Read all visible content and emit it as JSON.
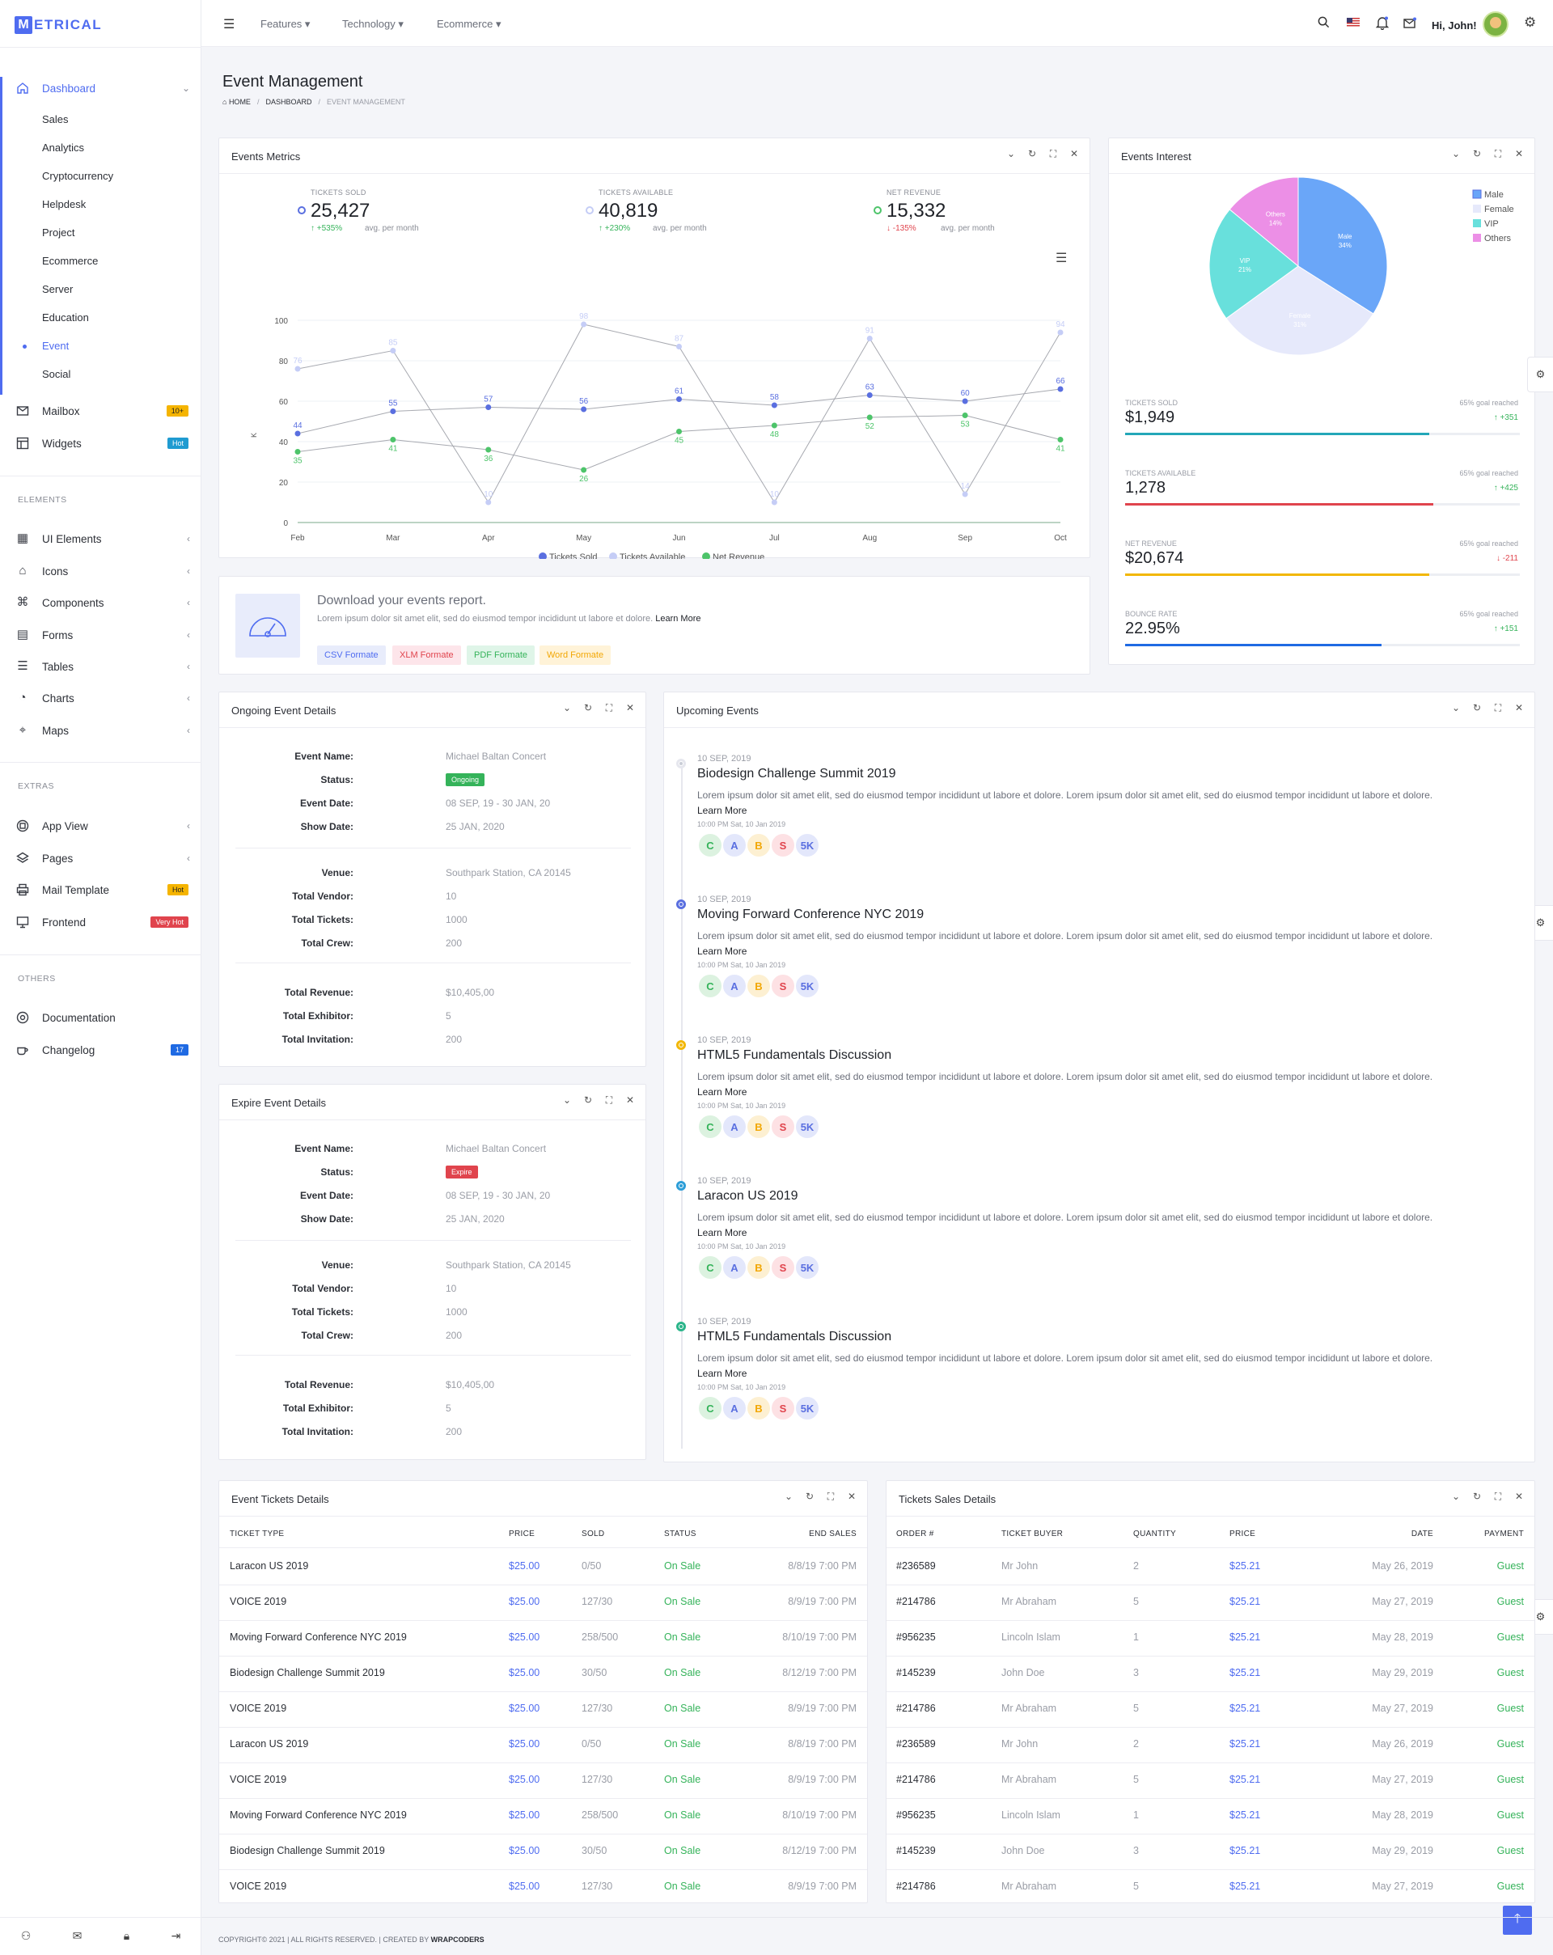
{
  "app": {
    "logo_letter": "M",
    "logo_text": "ETRICAL"
  },
  "sidebar": {
    "dashboard": "Dashboard",
    "sub": [
      "Sales",
      "Analytics",
      "Cryptocurrency",
      "Helpdesk",
      "Project",
      "Ecommerce",
      "Server",
      "Education",
      "Event",
      "Social"
    ],
    "mailbox": "Mailbox",
    "mailbox_badge": "10+",
    "widgets": "Widgets",
    "widgets_badge": "Hot",
    "sec_elements": "ELEMENTS",
    "elements": [
      "UI Elements",
      "Icons",
      "Components",
      "Forms",
      "Tables",
      "Charts",
      "Maps"
    ],
    "sec_extras": "EXTRAS",
    "appview": "App View",
    "pages": "Pages",
    "mailtpl": "Mail Template",
    "mailtpl_badge": "Hot",
    "frontend": "Frontend",
    "frontend_badge": "Very Hot",
    "sec_others": "OTHERS",
    "docs": "Documentation",
    "changelog": "Changelog",
    "changelog_badge": "17"
  },
  "topbar": {
    "menus": [
      "Features",
      "Technology",
      "Ecommerce"
    ],
    "greeting": "Hi, John!"
  },
  "page": {
    "title": "Event Management",
    "crumb_home": "HOME",
    "crumb_dash": "DASHBOARD",
    "crumb_cur": "EVENT MANAGEMENT"
  },
  "metrics": {
    "title": "Events Metrics",
    "items": [
      {
        "label": "TICKETS SOLD",
        "value": "25,427",
        "change": "+535%",
        "sub": "avg. per month"
      },
      {
        "label": "TICKETS AVAILABLE",
        "value": "40,819",
        "change": "+230%",
        "sub": "avg. per month"
      },
      {
        "label": "NET REVENUE",
        "value": "15,332",
        "change": "-135%",
        "sub": "avg. per month"
      }
    ],
    "ylabel": "K",
    "legend": [
      "Tickets Sold",
      "Tickets Available",
      "Net Revenue"
    ]
  },
  "chart_data": {
    "type": "line",
    "categories": [
      "Feb",
      "Mar",
      "Apr",
      "May",
      "Jun",
      "Jul",
      "Aug",
      "Sep",
      "Oct"
    ],
    "ylim": [
      0,
      100
    ],
    "yticks": [
      0,
      20,
      40,
      60,
      80,
      100
    ],
    "series": [
      {
        "name": "Tickets Sold",
        "color": "#5a6fe0",
        "values": [
          44,
          55,
          57,
          56,
          61,
          58,
          63,
          60,
          66
        ]
      },
      {
        "name": "Tickets Available",
        "color": "#c5cdf6",
        "values": [
          76,
          85,
          10,
          98,
          87,
          10,
          91,
          14,
          94
        ]
      },
      {
        "name": "Net Revenue",
        "color": "#4dc46a",
        "values": [
          35,
          41,
          36,
          26,
          45,
          48,
          52,
          53,
          41
        ]
      }
    ],
    "legend_position": "bottom"
  },
  "report": {
    "title": "Download your events report.",
    "text": "Lorem ipsum dolor sit amet elit, sed do eiusmod tempor incididunt ut labore et dolore.",
    "more": "Learn More",
    "buttons": [
      "CSV Formate",
      "XLM Formate",
      "PDF Formate",
      "Word Formate"
    ]
  },
  "interest": {
    "title": "Events Interest",
    "pie": {
      "type": "pie",
      "labels": [
        "Male",
        "Female",
        "VIP",
        "Others"
      ],
      "values": [
        34,
        31,
        21,
        14
      ],
      "colors": [
        "#6aa6f8",
        "#e6e9fb",
        "#68e0dc",
        "#ec8fe6"
      ],
      "slice_labels": [
        "Male\n34%",
        "Female\n31%",
        "VIP\n21%",
        "Others\n14%"
      ]
    },
    "legend": [
      "Male",
      "Female",
      "VIP",
      "Others"
    ],
    "stats": [
      {
        "label": "TICKETS SOLD",
        "goal": "65% goal reached",
        "value": "$1,949",
        "change": "+351",
        "dir": "up",
        "color": "#23a7b8",
        "pct": 65
      },
      {
        "label": "TICKETS AVAILABLE",
        "goal": "65% goal reached",
        "value": "1,278",
        "change": "+425",
        "dir": "up",
        "color": "#e0444d",
        "pct": 65
      },
      {
        "label": "NET REVENUE",
        "goal": "65% goal reached",
        "value": "$20,674",
        "change": "-211",
        "dir": "down",
        "color": "#f2b705",
        "pct": 65
      },
      {
        "label": "BOUNCE RATE",
        "goal": "65% goal reached",
        "value": "22.95%",
        "change": "+151",
        "dir": "up",
        "color": "#1f6ae3",
        "pct": 65
      }
    ]
  },
  "ongoing": {
    "title": "Ongoing Event Details",
    "rows1": [
      [
        "Event Name:",
        "Michael Baltan Concert"
      ],
      [
        "Status:",
        ""
      ],
      [
        "Event Date:",
        "08 SEP, 19 - 30 JAN, 20"
      ],
      [
        "Show Date:",
        "25 JAN, 2020"
      ]
    ],
    "status": "Ongoing",
    "rows2": [
      [
        "Venue:",
        "Southpark Station, CA 20145"
      ],
      [
        "Total Vendor:",
        "10"
      ],
      [
        "Total Tickets:",
        "1000"
      ],
      [
        "Total Crew:",
        "200"
      ]
    ],
    "rows3": [
      [
        "Total Revenue:",
        "$10,405,00"
      ],
      [
        "Total Exhibitor:",
        "5"
      ],
      [
        "Total Invitation:",
        "200"
      ]
    ]
  },
  "expire": {
    "title": "Expire Event Details",
    "rows1": [
      [
        "Event Name:",
        "Michael Baltan Concert"
      ],
      [
        "Status:",
        ""
      ],
      [
        "Event Date:",
        "08 SEP, 19 - 30 JAN, 20"
      ],
      [
        "Show Date:",
        "25 JAN, 2020"
      ]
    ],
    "status": "Expire",
    "rows2": [
      [
        "Venue:",
        "Southpark Station, CA 20145"
      ],
      [
        "Total Vendor:",
        "10"
      ],
      [
        "Total Tickets:",
        "1000"
      ],
      [
        "Total Crew:",
        "200"
      ]
    ],
    "rows3": [
      [
        "Total Revenue:",
        "$10,405,00"
      ],
      [
        "Total Exhibitor:",
        "5"
      ],
      [
        "Total Invitation:",
        "200"
      ]
    ]
  },
  "upcoming": {
    "title": "Upcoming Events",
    "events": [
      {
        "date": "10 SEP, 2019",
        "title": "Biodesign Challenge Summit 2019",
        "dot": "#c9cdd6"
      },
      {
        "date": "10 SEP, 2019",
        "title": "Moving Forward Conference NYC 2019",
        "dot": "#5a6fe0"
      },
      {
        "date": "10 SEP, 2019",
        "title": "HTML5 Fundamentals Discussion",
        "dot": "#f2b705"
      },
      {
        "date": "10 SEP, 2019",
        "title": "Laracon US 2019",
        "dot": "#2d9ed8"
      },
      {
        "date": "10 SEP, 2019",
        "title": "HTML5 Fundamentals Discussion",
        "dot": "#2bb58a"
      }
    ],
    "text": "Lorem ipsum dolor sit amet elit, sed do eiusmod tempor incididunt ut labore et dolore. Lorem ipsum dolor sit amet elit, sed do eiusmod tempor incididunt ut labore et dolore.",
    "more": "Learn More",
    "time": "10:00 PM Sat, 10 Jan 2019",
    "avatars": [
      "C",
      "A",
      "B",
      "S",
      "5K"
    ]
  },
  "tickets": {
    "title": "Event Tickets Details",
    "headers": [
      "TICKET TYPE",
      "PRICE",
      "SOLD",
      "STATUS",
      "END SALES"
    ],
    "rows": [
      [
        "Laracon US 2019",
        "$25.00",
        "0/50",
        "On Sale",
        "8/8/19 7:00 PM"
      ],
      [
        "VOICE 2019",
        "$25.00",
        "127/30",
        "On Sale",
        "8/9/19 7:00 PM"
      ],
      [
        "Moving Forward Conference NYC 2019",
        "$25.00",
        "258/500",
        "On Sale",
        "8/10/19 7:00 PM"
      ],
      [
        "Biodesign Challenge Summit 2019",
        "$25.00",
        "30/50",
        "On Sale",
        "8/12/19 7:00 PM"
      ],
      [
        "VOICE 2019",
        "$25.00",
        "127/30",
        "On Sale",
        "8/9/19 7:00 PM"
      ],
      [
        "Laracon US 2019",
        "$25.00",
        "0/50",
        "On Sale",
        "8/8/19 7:00 PM"
      ],
      [
        "VOICE 2019",
        "$25.00",
        "127/30",
        "On Sale",
        "8/9/19 7:00 PM"
      ],
      [
        "Moving Forward Conference NYC 2019",
        "$25.00",
        "258/500",
        "On Sale",
        "8/10/19 7:00 PM"
      ],
      [
        "Biodesign Challenge Summit 2019",
        "$25.00",
        "30/50",
        "On Sale",
        "8/12/19 7:00 PM"
      ],
      [
        "VOICE 2019",
        "$25.00",
        "127/30",
        "On Sale",
        "8/9/19 7:00 PM"
      ]
    ]
  },
  "sales": {
    "title": "Tickets Sales Details",
    "headers": [
      "ORDER #",
      "TICKET BUYER",
      "QUANTITY",
      "PRICE",
      "DATE",
      "PAYMENT"
    ],
    "rows": [
      [
        "#236589",
        "Mr John",
        "2",
        "$25.21",
        "May 26, 2019",
        "Guest"
      ],
      [
        "#214786",
        "Mr Abraham",
        "5",
        "$25.21",
        "May 27, 2019",
        "Guest"
      ],
      [
        "#956235",
        "Lincoln Islam",
        "1",
        "$25.21",
        "May 28, 2019",
        "Guest"
      ],
      [
        "#145239",
        "John Doe",
        "3",
        "$25.21",
        "May 29, 2019",
        "Guest"
      ],
      [
        "#214786",
        "Mr Abraham",
        "5",
        "$25.21",
        "May 27, 2019",
        "Guest"
      ],
      [
        "#236589",
        "Mr John",
        "2",
        "$25.21",
        "May 26, 2019",
        "Guest"
      ],
      [
        "#214786",
        "Mr Abraham",
        "5",
        "$25.21",
        "May 27, 2019",
        "Guest"
      ],
      [
        "#956235",
        "Lincoln Islam",
        "1",
        "$25.21",
        "May 28, 2019",
        "Guest"
      ],
      [
        "#145239",
        "John Doe",
        "3",
        "$25.21",
        "May 29, 2019",
        "Guest"
      ],
      [
        "#214786",
        "Mr Abraham",
        "5",
        "$25.21",
        "May 27, 2019",
        "Guest"
      ]
    ]
  },
  "footer": {
    "text": "COPYRIGHT© 2021 | ALL RIGHTS RESERVED. | CREATED BY",
    "brand": "WRAPCODERS"
  }
}
